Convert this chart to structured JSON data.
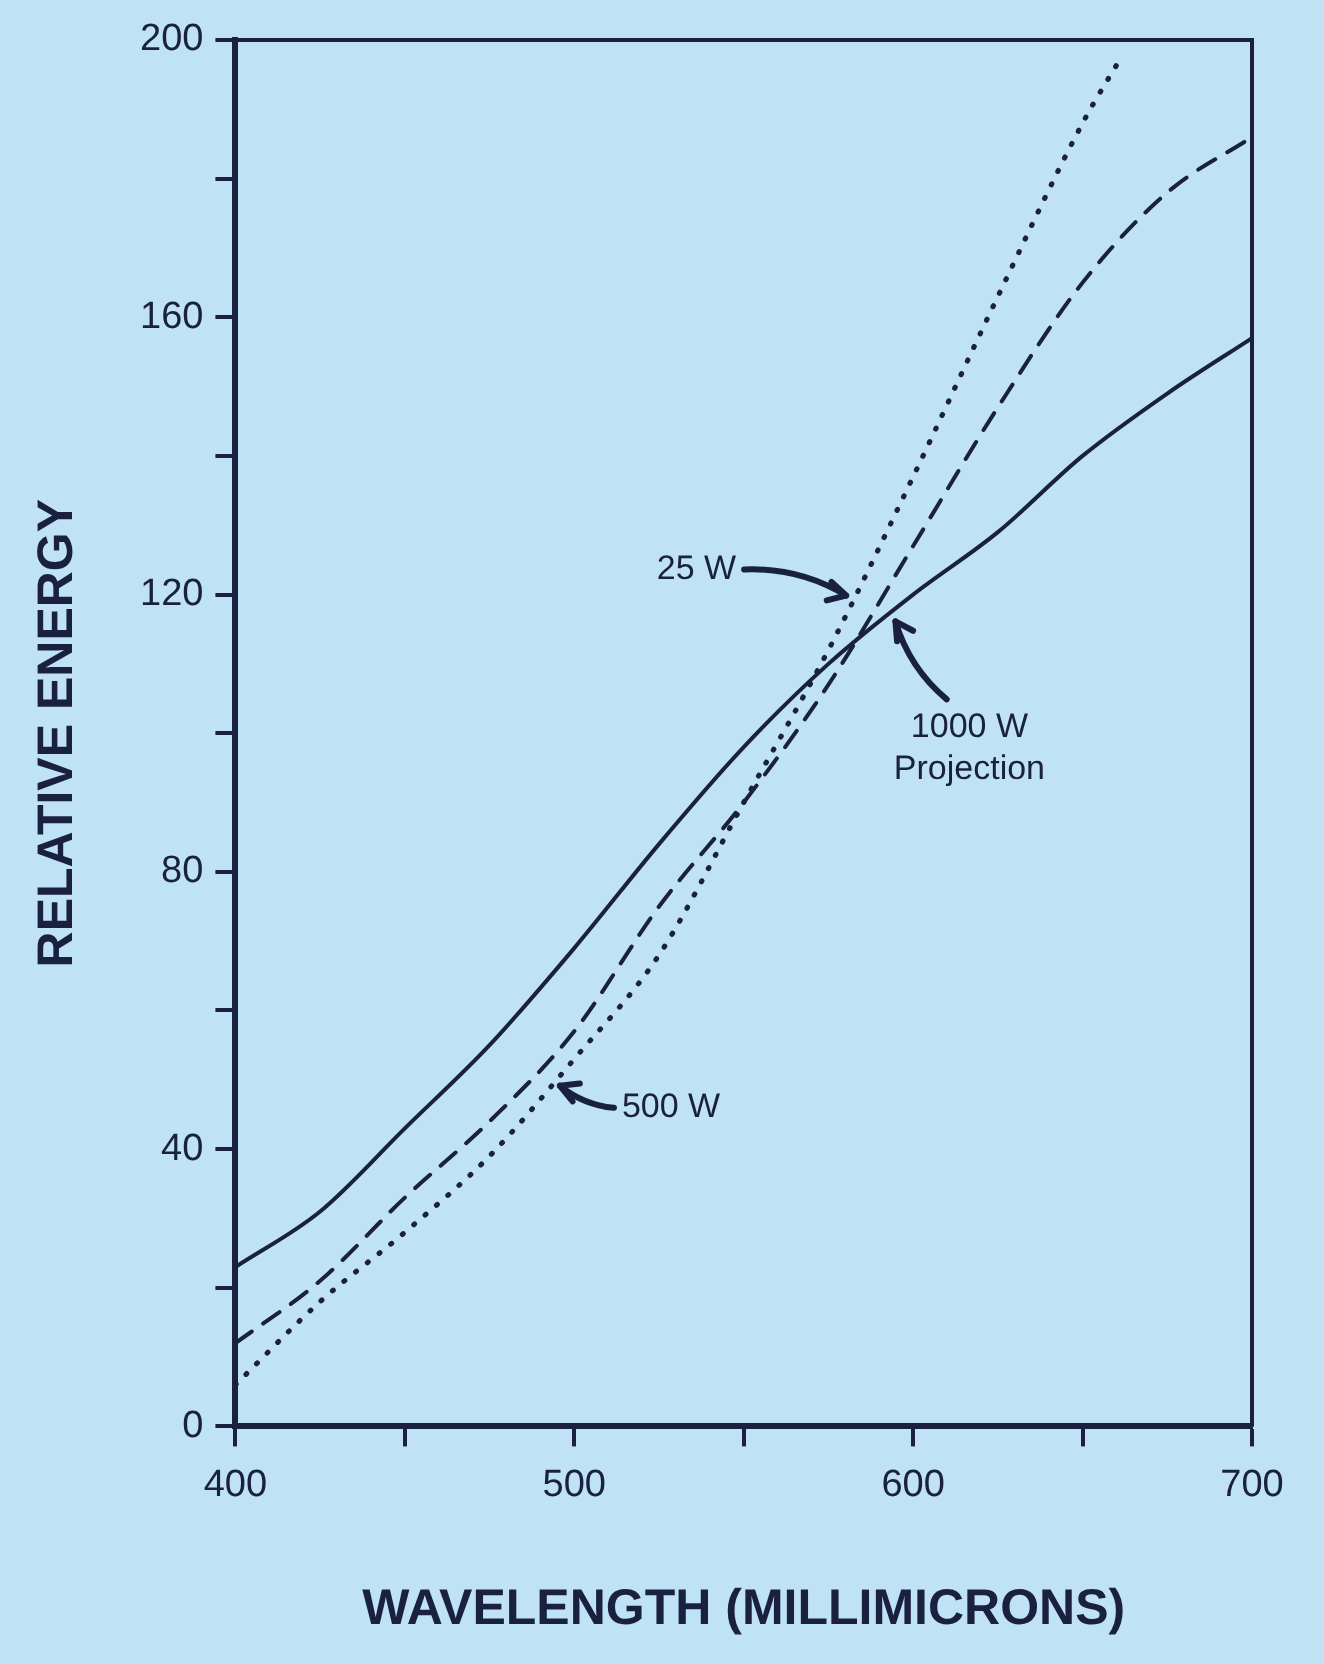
{
  "chart_data": {
    "type": "line",
    "xlabel": "WAVELENGTH (MILLIMICRONS)",
    "ylabel": "RELATIVE ENERGY",
    "xlim": [
      400,
      700
    ],
    "xticks": [
      400,
      {
        "value": 450,
        "label": null
      },
      500,
      {
        "value": 550,
        "label": null
      },
      600,
      {
        "value": 650,
        "label": null
      },
      700
    ],
    "ylim": [
      0,
      200
    ],
    "yticks": [
      0,
      {
        "value": 20,
        "label": null
      },
      40,
      {
        "value": 60,
        "label": null
      },
      80,
      {
        "value": 100,
        "label": null
      },
      120,
      {
        "value": 140,
        "label": null
      },
      160,
      {
        "value": 180,
        "label": null
      },
      200
    ],
    "series": [
      {
        "color": "#1a2040",
        "line_style": "solid",
        "x": [
          400,
          425,
          450,
          475,
          500,
          525,
          550,
          575,
          600,
          625,
          650,
          675,
          700
        ],
        "values": [
          23,
          31,
          43,
          55,
          69,
          84,
          98,
          110,
          120,
          129,
          140,
          149,
          157
        ]
      },
      {
        "color": "#1a2040",
        "line_style": "dashed",
        "x": [
          400,
          425,
          450,
          475,
          500,
          525,
          550,
          575,
          600,
          625,
          650,
          675,
          700
        ],
        "values": [
          12,
          21,
          33,
          44,
          57,
          75,
          90,
          107,
          127,
          147,
          165,
          178,
          186
        ]
      },
      {
        "color": "#1a2040",
        "line_style": "dotted",
        "x": [
          400,
          425,
          450,
          475,
          500,
          525,
          550,
          575,
          600,
          625,
          650,
          662
        ],
        "values": [
          6,
          18,
          28,
          39,
          53,
          68,
          90,
          112,
          137,
          163,
          188,
          198
        ]
      }
    ],
    "marker": "none",
    "legend": false,
    "annotations": [
      {
        "text": "25 W",
        "x": 582,
        "y": 119
      },
      {
        "text": "500 W",
        "x": 494,
        "y": 50
      },
      {
        "text": "1000 W\nProjection",
        "x": 593,
        "y": 117
      }
    ]
  }
}
